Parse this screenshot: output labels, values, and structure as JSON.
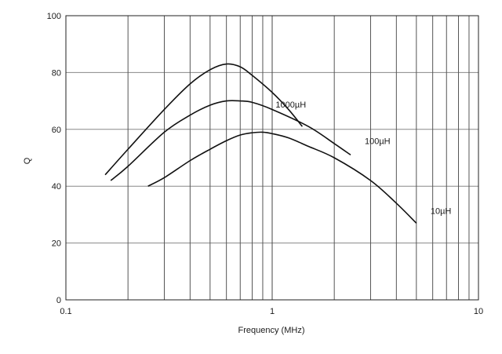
{
  "chart_data": {
    "type": "line",
    "xlabel": "Frequency (MHz)",
    "ylabel": "Q",
    "x_scale": "log",
    "xlim": [
      0.1,
      10
    ],
    "ylim": [
      0,
      100
    ],
    "x_tick_labels": [
      {
        "value": 0.1,
        "label": "0.1"
      },
      {
        "value": 1,
        "label": "1"
      },
      {
        "value": 10,
        "label": "10"
      }
    ],
    "y_tick_labels": [
      {
        "value": 0,
        "label": "0"
      },
      {
        "value": 20,
        "label": "20"
      },
      {
        "value": 40,
        "label": "40"
      },
      {
        "value": 60,
        "label": "60"
      },
      {
        "value": 80,
        "label": "80"
      },
      {
        "value": 100,
        "label": "100"
      }
    ],
    "grid": true,
    "series": [
      {
        "name": "1000µH",
        "x": [
          0.155,
          0.2,
          0.3,
          0.4,
          0.5,
          0.6,
          0.7,
          0.8,
          1.0,
          1.2,
          1.4
        ],
        "y": [
          44,
          53,
          67,
          76,
          81,
          83,
          82,
          79,
          73,
          67,
          61
        ]
      },
      {
        "name": "100µH",
        "x": [
          0.165,
          0.2,
          0.3,
          0.4,
          0.5,
          0.6,
          0.7,
          0.8,
          1.0,
          1.5,
          2.0,
          2.4
        ],
        "y": [
          42,
          47,
          59,
          65,
          68.5,
          70,
          70,
          69.5,
          67,
          61,
          55,
          51
        ]
      },
      {
        "name": "10µH",
        "x": [
          0.25,
          0.3,
          0.4,
          0.5,
          0.6,
          0.7,
          0.8,
          0.9,
          1.0,
          1.2,
          1.5,
          2.0,
          3.0,
          4.0,
          5.0
        ],
        "y": [
          40,
          43,
          49,
          53,
          56,
          58,
          58.8,
          59,
          58.5,
          57,
          54,
          50,
          42,
          34,
          27
        ]
      }
    ]
  }
}
